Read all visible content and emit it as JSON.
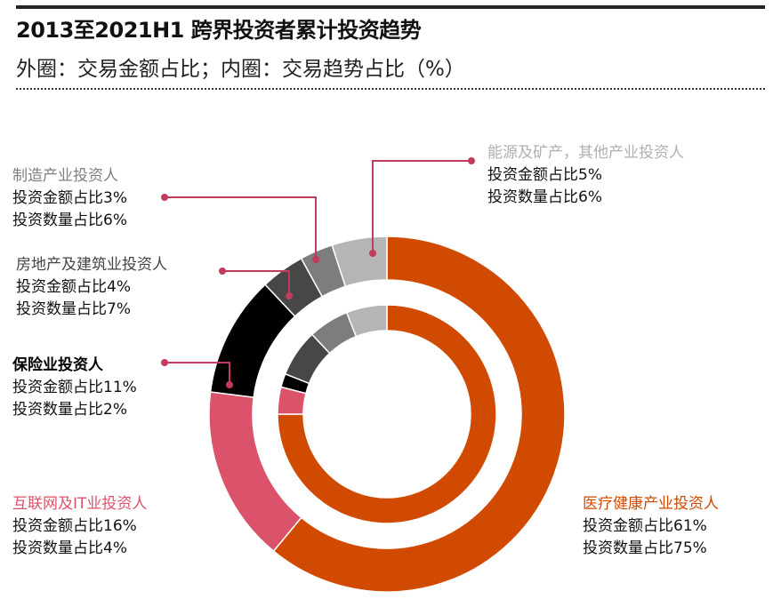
{
  "header": {
    "title": "2013至2021H1 跨界投资者累计投资趋势",
    "subtitle": "外圈：交易金额占比；内圈：交易趋势占比（%）"
  },
  "chart_data": {
    "type": "pie",
    "title": "2013至2021H1 跨界投资者累计投资趋势",
    "subtitle": "外圈：交易金额占比；内圈：交易趋势占比（%）",
    "categories": [
      "医疗健康产业投资人",
      "互联网及IT业投资人",
      "保险业投资人",
      "房地产及建筑业投资人",
      "制造产业投资人",
      "能源及矿产，其他产业投资人"
    ],
    "colors": [
      "#d04a02",
      "#db536a",
      "#000000",
      "#474747",
      "#7d7d7d",
      "#b5b5b5"
    ],
    "series": [
      {
        "name": "投资金额占比",
        "ring": "outer",
        "values": [
          61,
          16,
          11,
          4,
          3,
          5
        ]
      },
      {
        "name": "投资数量占比",
        "ring": "inner",
        "values": [
          75,
          4,
          2,
          7,
          6,
          6
        ]
      }
    ],
    "leader_color": "#c23a5c",
    "labels": [
      {
        "title": "能源及矿产，其他产业投资人",
        "l1": "投资金额占比5%",
        "l2": "投资数量占比6%"
      },
      {
        "title": "制造产业投资人",
        "l1": "投资金额占比3%",
        "l2": "投资数量占比6%"
      },
      {
        "title": "房地产及建筑业投资人",
        "l1": "投资金额占比4%",
        "l2": "投资数量占比7%"
      },
      {
        "title": "保险业投资人",
        "l1": "投资金额占比11%",
        "l2": "投资数量占比2%"
      },
      {
        "title": "互联网及IT业投资人",
        "l1": "投资金额占比16%",
        "l2": "投资数量占比4%"
      },
      {
        "title": "医疗健康产业投资人",
        "l1": "投资金额占比61%",
        "l2": "投资数量占比75%"
      }
    ]
  }
}
